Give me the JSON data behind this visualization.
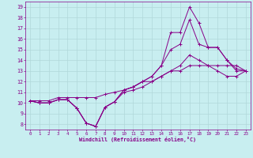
{
  "x": [
    0,
    1,
    2,
    3,
    4,
    5,
    6,
    7,
    8,
    9,
    10,
    11,
    12,
    13,
    14,
    15,
    16,
    17,
    18,
    19,
    20,
    21,
    22,
    23
  ],
  "line1": [
    10.2,
    10.0,
    10.0,
    10.3,
    10.3,
    9.5,
    8.1,
    7.8,
    9.6,
    10.1,
    11.2,
    11.5,
    12.0,
    12.5,
    13.5,
    16.6,
    16.6,
    19.0,
    17.5,
    15.2,
    15.2,
    14.0,
    13.0,
    13.0
  ],
  "line2": [
    10.2,
    10.0,
    10.0,
    10.3,
    10.3,
    9.5,
    8.1,
    7.8,
    9.6,
    10.1,
    11.2,
    11.5,
    12.0,
    12.5,
    13.5,
    15.0,
    15.5,
    17.8,
    15.5,
    15.2,
    15.2,
    14.0,
    13.2,
    13.0
  ],
  "line3": [
    10.2,
    10.0,
    10.0,
    10.3,
    10.3,
    9.5,
    8.1,
    7.8,
    9.6,
    10.1,
    11.0,
    11.2,
    11.5,
    12.0,
    12.5,
    13.0,
    13.5,
    14.5,
    14.0,
    13.5,
    13.0,
    12.5,
    12.5,
    13.0
  ],
  "line4": [
    10.2,
    10.2,
    10.2,
    10.5,
    10.5,
    10.5,
    10.5,
    10.5,
    10.8,
    11.0,
    11.2,
    11.5,
    12.0,
    12.0,
    12.5,
    13.0,
    13.0,
    13.5,
    13.5,
    13.5,
    13.5,
    13.5,
    13.5,
    13.0
  ],
  "line_color": "#880088",
  "bg_color": "#c8eef0",
  "grid_color": "#b0d8da",
  "xlabel": "Windchill (Refroidissement éolien,°C)",
  "ylim": [
    7.5,
    19.5
  ],
  "xlim": [
    -0.5,
    23.5
  ],
  "yticks": [
    8,
    9,
    10,
    11,
    12,
    13,
    14,
    15,
    16,
    17,
    18,
    19
  ],
  "xticks": [
    0,
    1,
    2,
    3,
    4,
    5,
    6,
    7,
    8,
    9,
    10,
    11,
    12,
    13,
    14,
    15,
    16,
    17,
    18,
    19,
    20,
    21,
    22,
    23
  ]
}
